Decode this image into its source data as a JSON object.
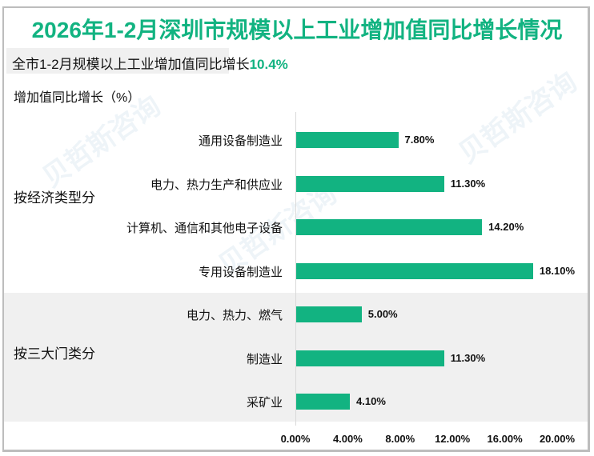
{
  "title": "2026年1-2月深圳市规模以上工业增加值同比增长情况",
  "subtitle": {
    "prefix": "全市1-2月规模以上工业增加值同比增长",
    "highlight": "10.4%"
  },
  "watermark": "贝哲斯咨询",
  "colors": {
    "accent": "#12b381",
    "band": "#f0f0f0",
    "border": "#bdbdbd"
  },
  "chart_data": {
    "type": "bar",
    "orientation": "horizontal",
    "title": "2026年1-2月深圳市规模以上工业增加值同比增长情况",
    "ylabel": "增加值同比增长（%）",
    "xlabel": "",
    "xlim": [
      0,
      20
    ],
    "x_ticks": [
      "0.00%",
      "4.00%",
      "8.00%",
      "12.00%",
      "16.00%",
      "20.00%"
    ],
    "grid": false,
    "legend": null,
    "groups": [
      {
        "name": "按经济类型分",
        "categories": [
          "通用设备制造业",
          "电力、热力生产和供应业",
          "计算机、通信和其他电子设备",
          "专用设备制造业"
        ],
        "values": [
          7.8,
          11.3,
          14.2,
          18.1
        ],
        "labels": [
          "7.80%",
          "11.30%",
          "14.20%",
          "18.10%"
        ]
      },
      {
        "name": "按三大门类分",
        "categories": [
          "电力、热力、燃气",
          "制造业",
          "采矿业"
        ],
        "values": [
          5.0,
          11.3,
          4.1
        ],
        "labels": [
          "5.00%",
          "11.30%",
          "4.10%"
        ]
      }
    ]
  }
}
